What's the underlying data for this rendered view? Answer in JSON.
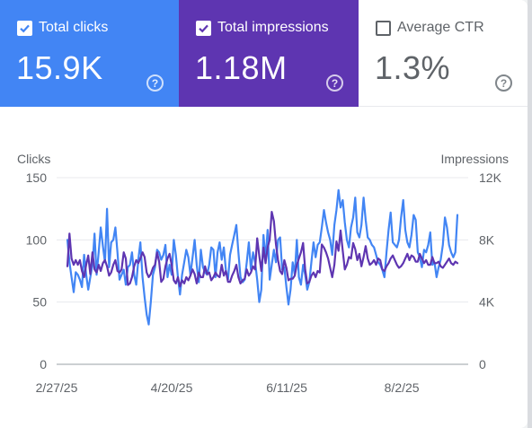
{
  "metrics": [
    {
      "label": "Total clicks",
      "value": "15.9K",
      "checked": true,
      "color": "#4285f4",
      "help_icon": "help-circle-icon"
    },
    {
      "label": "Total impressions",
      "value": "1.18M",
      "checked": true,
      "color": "#5e35b1",
      "help_icon": "help-circle-icon"
    },
    {
      "label": "Average CTR",
      "value": "1.3%",
      "checked": false,
      "color": "#ffffff",
      "help_icon": "help-circle-icon"
    }
  ],
  "chart_data": {
    "type": "line",
    "left_axis_title": "Clicks",
    "right_axis_title": "Impressions",
    "left_ticks": [
      "0",
      "50",
      "100",
      "150"
    ],
    "right_ticks": [
      "0",
      "4K",
      "8K",
      "12K"
    ],
    "left_ylim": [
      0,
      150
    ],
    "right_ylim": [
      0,
      12000
    ],
    "x_tick_labels": [
      "2/27/25",
      "4/20/25",
      "6/11/25",
      "8/2/25"
    ],
    "x_tick_dates": [
      "2025-02-27",
      "2025-04-20",
      "2025-06-11",
      "2025-08-02"
    ],
    "x_start": "2025-02-27",
    "x_end": "2025-09-01",
    "grid": true,
    "series": [
      {
        "name": "Clicks",
        "axis": "left",
        "color": "#4285f4",
        "values": [
          100,
          82,
          70,
          58,
          74,
          72,
          68,
          62,
          88,
          72,
          60,
          70,
          80,
          105,
          72,
          90,
          110,
          95,
          82,
          125,
          78,
          98,
          100,
          110,
          90,
          68,
          72,
          76,
          64,
          78,
          80,
          90,
          72,
          64,
          84,
          98,
          70,
          54,
          40,
          32,
          50,
          72,
          78,
          92,
          90,
          84,
          88,
          96,
          70,
          80,
          72,
          100,
          88,
          70,
          56,
          72,
          82,
          92,
          86,
          72,
          86,
          100,
          80,
          66,
          92,
          78,
          74,
          72,
          80,
          94,
          92,
          70,
          90,
          98,
          84,
          94,
          75,
          68,
          88,
          96,
          104,
          112,
          90,
          70,
          66,
          68,
          82,
          98,
          76,
          90,
          82,
          68,
          50,
          60,
          104,
          84,
          108,
          68,
          80,
          92,
          82,
          100,
          102,
          76,
          78,
          62,
          48,
          60,
          82,
          72,
          100,
          70,
          64,
          80,
          72,
          60,
          66,
          82,
          98,
          86,
          96,
          98,
          110,
          124,
          114,
          106,
          100,
          88,
          112,
          124,
          140,
          126,
          132,
          114,
          100,
          94,
          110,
          118,
          134,
          106,
          102,
          112,
          134,
          116,
          102,
          100,
          96,
          94,
          88,
          82,
          80,
          76,
          70,
          90,
          108,
          122,
          98,
          96,
          94,
          100,
          118,
          132,
          108,
          98,
          94,
          104,
          120,
          116,
          90,
          86,
          78,
          92,
          90,
          96,
          106,
          80,
          82,
          70,
          78,
          84,
          96,
          118,
          110,
          96,
          90,
          86,
          90,
          120
        ]
      },
      {
        "name": "Impressions",
        "axis": "right",
        "color": "#5e35b1",
        "values": [
          6300,
          8400,
          6800,
          6400,
          6700,
          6400,
          6700,
          6000,
          5600,
          6400,
          7000,
          5800,
          7200,
          6100,
          5900,
          6400,
          6000,
          6500,
          6700,
          6300,
          5700,
          5900,
          6400,
          6700,
          6000,
          5900,
          6100,
          7200,
          6800,
          5100,
          5200,
          5600,
          6300,
          6700,
          6500,
          6800,
          7200,
          6900,
          5900,
          5600,
          5800,
          6200,
          6400,
          7200,
          6600,
          5300,
          5500,
          6300,
          6800,
          7100,
          6400,
          5400,
          5200,
          5600,
          5000,
          5400,
          5200,
          5600,
          5400,
          5700,
          6100,
          5800,
          5200,
          5900,
          5600,
          5600,
          6300,
          5800,
          5900,
          5400,
          5600,
          5900,
          5700,
          5600,
          6400,
          5700,
          6000,
          5300,
          5300,
          5700,
          6000,
          6400,
          5600,
          5200,
          5400,
          5500,
          6100,
          5700,
          5900,
          6300,
          6100,
          8100,
          7000,
          6000,
          7500,
          6500,
          7500,
          8000,
          9800,
          9200,
          7700,
          6700,
          6000,
          5800,
          6700,
          6200,
          5400,
          5500,
          5500,
          5700,
          6400,
          6800,
          7200,
          7800,
          6100,
          5200,
          5300,
          5700,
          5900,
          5600,
          6000,
          5900,
          7700,
          7500,
          7200,
          6800,
          6200,
          5600,
          6400,
          7900,
          7300,
          8600,
          7300,
          6100,
          6400,
          6900,
          6800,
          7800,
          7400,
          6700,
          7100,
          6300,
          6900,
          7600,
          6800,
          6400,
          6500,
          6700,
          6400,
          6800,
          6700,
          6100,
          6000,
          6300,
          6500,
          6800,
          7000,
          6700,
          6400,
          6200,
          6300,
          6500,
          6800,
          7100,
          6700,
          7000,
          6900,
          6600,
          6600,
          7100,
          6800,
          6500,
          6700,
          6400,
          6400,
          6900,
          6500,
          6500,
          6600,
          6300,
          6200,
          6400,
          6600,
          6800,
          6500,
          6400,
          6600,
          6500
        ]
      }
    ]
  }
}
